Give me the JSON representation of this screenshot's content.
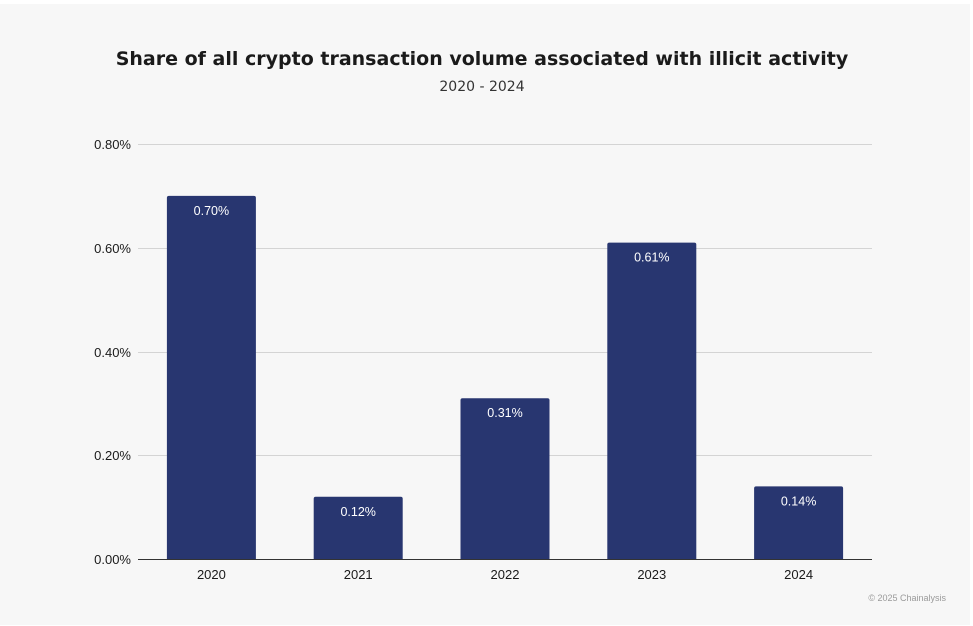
{
  "chart_data": {
    "type": "bar",
    "title": "Share of all crypto transaction volume associated with illicit activity",
    "subtitle": "2020 - 2024",
    "xlabel": "",
    "ylabel": "",
    "categories": [
      "2020",
      "2021",
      "2022",
      "2023",
      "2024"
    ],
    "values": [
      0.7,
      0.12,
      0.31,
      0.61,
      0.14
    ],
    "data_labels": [
      "0.70%",
      "0.12%",
      "0.31%",
      "0.61%",
      "0.14%"
    ],
    "ylim": [
      0,
      0.8
    ],
    "y_ticks": [
      0,
      0.2,
      0.4,
      0.6,
      0.8
    ],
    "y_tick_labels": [
      "0.00%",
      "0.20%",
      "0.40%",
      "0.60%",
      "0.80%"
    ],
    "grid": true,
    "legend": "none",
    "bar_color": "#283670"
  },
  "credit": "© 2025 Chainalysis"
}
